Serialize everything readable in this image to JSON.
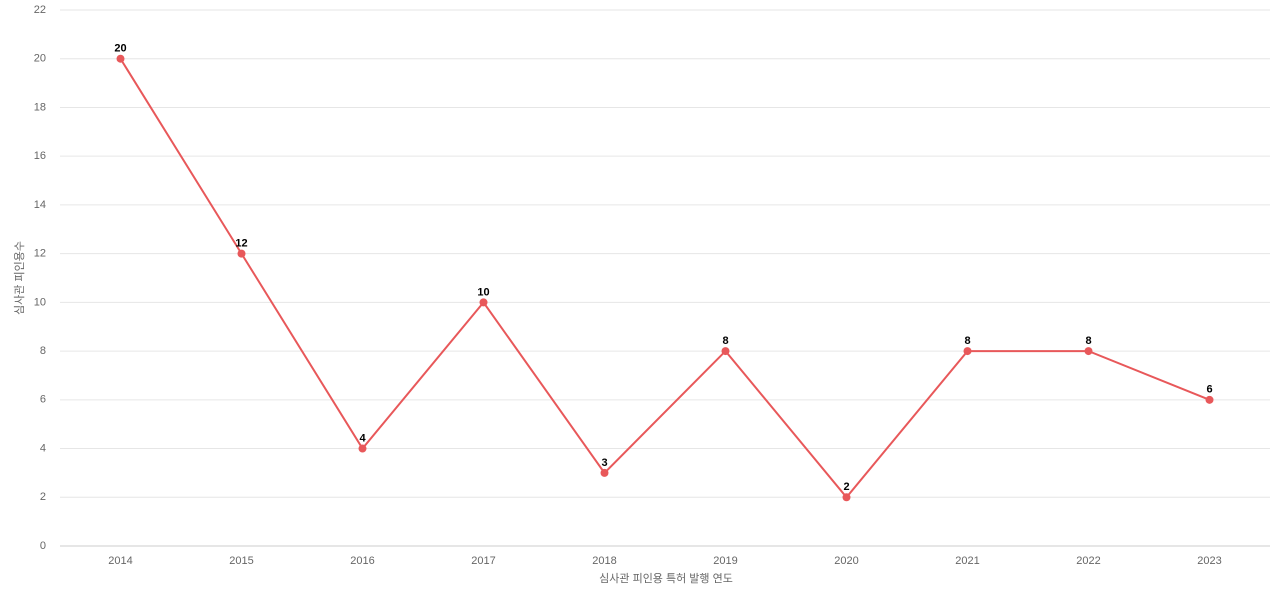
{
  "chart_data": {
    "type": "line",
    "x_label": "심사관 피인용 특허 발행 연도",
    "y_label": "심사관 피인용수",
    "categories": [
      "2014",
      "2015",
      "2016",
      "2017",
      "2018",
      "2019",
      "2020",
      "2021",
      "2022",
      "2023"
    ],
    "values": [
      20,
      12,
      4,
      10,
      3,
      8,
      2,
      8,
      8,
      6
    ],
    "color": "#e8585a",
    "ylim": [
      0,
      22
    ],
    "yticks": [
      0,
      2,
      4,
      6,
      8,
      10,
      12,
      14,
      16,
      18,
      20,
      22
    ],
    "grid": true
  }
}
